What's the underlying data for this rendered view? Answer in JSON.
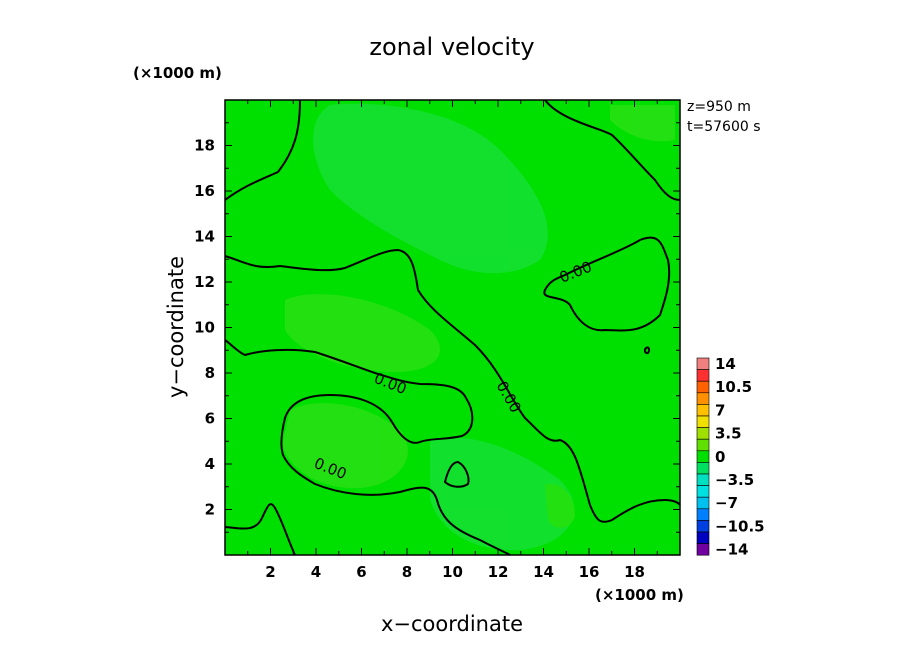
{
  "chart_data": {
    "type": "heatmap",
    "title": "zonal velocity",
    "xlabel": "x−coordinate",
    "ylabel": "y−coordinate",
    "x_unit": "(×1000 m)",
    "y_unit": "(×1000 m)",
    "annotations": [
      "z=950 m",
      "t=57600 s"
    ],
    "xlim": [
      0,
      20
    ],
    "ylim": [
      0,
      20
    ],
    "x_ticks": [
      "2",
      "4",
      "6",
      "8",
      "10",
      "12",
      "14",
      "16",
      "18"
    ],
    "y_ticks": [
      "2",
      "4",
      "6",
      "8",
      "10",
      "12",
      "14",
      "16",
      "18"
    ],
    "contour_labels": [
      "0.00",
      "0.00",
      "0.00",
      "0.00"
    ],
    "colorbar": {
      "labels": [
        "14",
        "10.5",
        "7",
        "3.5",
        "0",
        "−3.5",
        "−7",
        "−10.5",
        "−14"
      ],
      "levels": [
        14,
        12.25,
        10.5,
        8.75,
        7,
        5.25,
        3.5,
        1.75,
        0,
        -1.75,
        -3.5,
        -5.25,
        -7,
        -8.75,
        -10.5,
        -12.25,
        -14
      ],
      "colors": [
        "#f08080",
        "#ff3030",
        "#ff6000",
        "#ff9000",
        "#ffc000",
        "#f0e000",
        "#a0e000",
        "#60e000",
        "#00e000",
        "#00e060",
        "#00e0c0",
        "#00e0e0",
        "#00c0f0",
        "#0080ff",
        "#0040e0",
        "#0000c0",
        "#7000a0"
      ]
    },
    "field": {
      "background": "#00e000",
      "positive_color": "#40e020",
      "negative_color": "#20e050"
    }
  }
}
